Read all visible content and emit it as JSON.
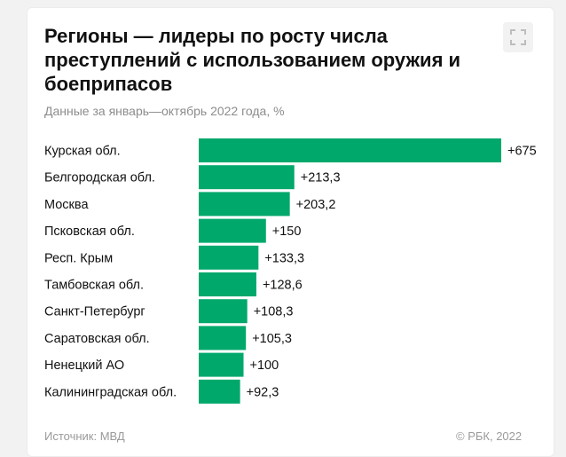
{
  "header": {
    "title": "Регионы — лидеры по росту числа преступлений с использованием оружия и боеприпасов",
    "subtitle": "Данные за январь—октябрь 2022 года, %"
  },
  "footer": {
    "source": "Источник: МВД",
    "copyright": "© РБК, 2022"
  },
  "colors": {
    "bar": "#00a86b"
  },
  "icons": {
    "expand": "expand-icon"
  },
  "chart_data": {
    "type": "bar",
    "orientation": "horizontal",
    "title": "Регионы — лидеры по росту числа преступлений с использованием оружия и боеприпасов",
    "subtitle": "Данные за январь—октябрь 2022 года, %",
    "categories": [
      "Курская обл.",
      "Белгородская обл.",
      "Москва",
      "Псковская обл.",
      "Респ. Крым",
      "Тамбовская обл.",
      "Санкт-Петербург",
      "Саратовская обл.",
      "Ненецкий АО",
      "Калининградская обл."
    ],
    "values": [
      675,
      213.3,
      203.2,
      150,
      133.3,
      128.6,
      108.3,
      105.3,
      100,
      92.3
    ],
    "value_labels": [
      "+675",
      "+213,3",
      "+203,2",
      "+150",
      "+133,3",
      "+128,6",
      "+108,3",
      "+105,3",
      "+100",
      "+92,3"
    ],
    "xlim": [
      0,
      675
    ],
    "grid": false,
    "legend": "none"
  }
}
